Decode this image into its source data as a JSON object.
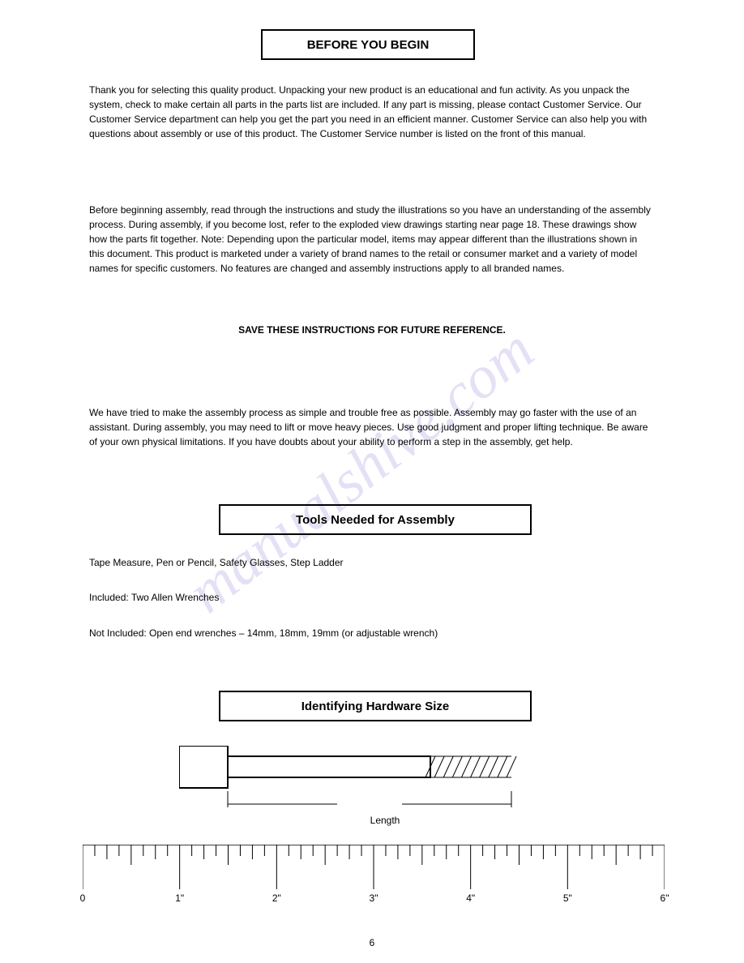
{
  "title": "BEFORE YOU BEGIN",
  "paragraphs": {
    "p1": "Thank you for selecting this quality product. Unpacking your new product is an educational and fun activity. As you unpack the system, check to make certain all parts in the parts list are included. If any part is missing, please contact Customer Service. Our Customer Service department can help you get the part you need in an efficient manner. Customer Service can also help you with questions about assembly or use of this product. The Customer Service number is listed on the front of this manual.",
    "p2": "Before beginning assembly, read through the instructions and study the illustrations so you have an understanding of the assembly process. During assembly, if you become lost, refer to the exploded view drawings starting near page 18. These drawings show how the parts fit together. Note: Depending upon the particular model, items may appear different than the illustrations shown in this document. This product is marketed under a variety of brand names to the retail or consumer market and a variety of model names for specific customers. No features are changed and assembly instructions apply to all branded names.",
    "p3": "SAVE THESE INSTRUCTIONS FOR FUTURE REFERENCE.",
    "p4": "We have tried to make the assembly process as simple and trouble free as possible. Assembly may go faster with the use of an assistant. During assembly, you may need to lift or move heavy pieces.  Use good judgment and proper lifting technique. Be aware of your own physical limitations. If you have doubts about your ability to perform a step in the assembly, get help."
  },
  "tools": {
    "heading": "Tools Needed for Assembly",
    "lines": [
      "Tape Measure, Pen or Pencil, Safety Glasses, Step Ladder",
      "Included: Two Allen Wrenches",
      "Not Included: Open end wrenches – 14mm, 18mm, 19mm (or adjustable wrench)"
    ]
  },
  "hardware": {
    "heading": "Identifying Hardware Size",
    "length_label": "Length",
    "bolt": {
      "head_w": 60,
      "head_h": 52,
      "shaft_len": 350,
      "shaft_h": 26,
      "thread_len": 100,
      "stroke": "#000000",
      "stroke_width": 2
    },
    "ruler": {
      "stops": [
        0,
        1,
        2,
        3,
        4,
        5,
        6
      ],
      "labels": [
        "0",
        "1\"",
        "2\"",
        "3\"",
        "4\"",
        "5\"",
        "6\""
      ],
      "major_len": 55,
      "minor_len": 25,
      "tiny_len": 14,
      "stroke": "#000000"
    }
  },
  "page_number": "6",
  "watermark": {
    "text": "manualshive.com",
    "color": "#b8a8e8",
    "fontsize": 74
  }
}
